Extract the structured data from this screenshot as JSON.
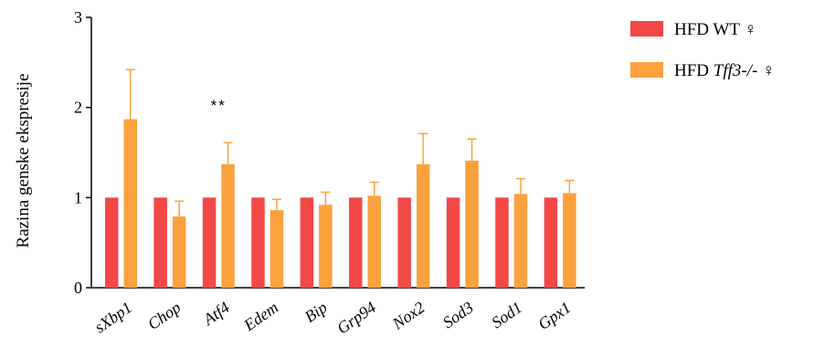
{
  "chart_data": {
    "type": "bar",
    "ylabel": "Razina genske ekspresije",
    "ylim": [
      0,
      3
    ],
    "yticks": [
      0,
      1,
      2,
      3
    ],
    "categories": [
      "sXbp1",
      "Chop",
      "Atf4",
      "Edem",
      "Bip",
      "Grp94",
      "Nox2",
      "Sod3",
      "Sod1",
      "Gpx1"
    ],
    "series": [
      {
        "name": "HFD WT ♀",
        "color": "#F24848",
        "values": [
          1,
          1,
          1,
          1,
          1,
          1,
          1,
          1,
          1,
          1
        ]
      },
      {
        "name_prefix": "HFD ",
        "name_italic": "Tff3-/-",
        "name_suffix": " ♀",
        "color": "#FBA23E",
        "values": [
          1.87,
          0.79,
          1.37,
          0.86,
          0.92,
          1.02,
          1.37,
          1.41,
          1.04,
          1.05
        ],
        "errors": [
          0.55,
          0.17,
          0.24,
          0.12,
          0.14,
          0.15,
          0.34,
          0.24,
          0.17,
          0.14
        ]
      }
    ],
    "annotations": [
      {
        "category": "Atf4",
        "text": "**"
      }
    ],
    "legend_position": "top-right",
    "grid": false
  }
}
